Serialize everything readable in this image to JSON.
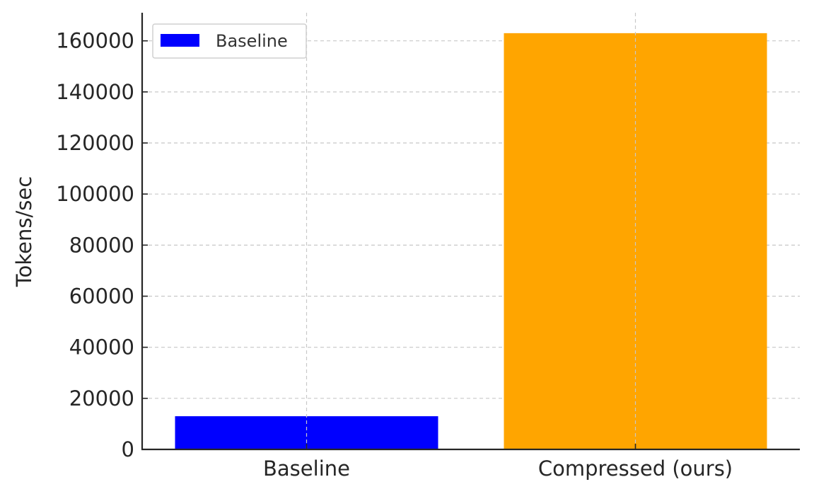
{
  "chart_data": {
    "type": "bar",
    "categories": [
      "Baseline",
      "Compressed (ours)"
    ],
    "values": [
      13000,
      163000
    ],
    "bar_colors": [
      "#0000ff",
      "#ffa500"
    ],
    "ylabel": "Tokens/sec",
    "xlabel": "",
    "ylim": [
      0,
      171000
    ],
    "yticks": [
      0,
      20000,
      40000,
      60000,
      80000,
      100000,
      120000,
      140000,
      160000
    ],
    "grid": true,
    "legend": {
      "placement": "top-left",
      "entries": [
        {
          "label": "Baseline",
          "color": "#0000ff"
        }
      ]
    }
  }
}
